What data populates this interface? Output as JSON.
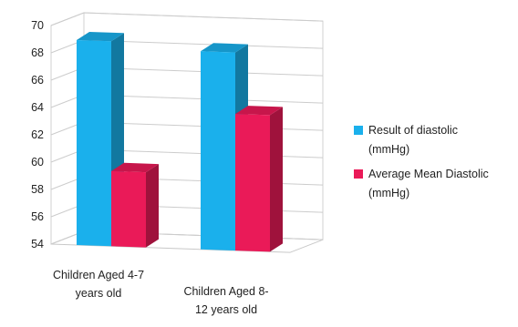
{
  "chart_data": {
    "type": "bar",
    "style": "3d-clustered-column",
    "categories": [
      "Children Aged 4-7 years old",
      "Children Aged 8-12 years old"
    ],
    "category_label_lines": [
      [
        "Children Aged 4-7",
        "years old"
      ],
      [
        "Children Aged 8-",
        "12 years old"
      ]
    ],
    "series": [
      {
        "name": "Result of diastolic (mmHg)",
        "values": [
          69.0,
          68.5
        ],
        "color": "#1ab0ec"
      },
      {
        "name": "Average Mean Diastolic (mmHg)",
        "values": [
          59.5,
          64.0
        ],
        "color": "#ea1a58"
      }
    ],
    "ylim": [
      54,
      70
    ],
    "yticks": [
      54,
      56,
      58,
      60,
      62,
      64,
      66,
      68,
      70
    ],
    "grid": true,
    "legend_position": "right",
    "title": "",
    "xlabel": "",
    "ylabel": ""
  },
  "legend": {
    "items": [
      {
        "line1": "Result of diastolic",
        "line2": "(mmHg)",
        "color": "#1ab0ec"
      },
      {
        "line1": "Average Mean Diastolic",
        "line2": "(mmHg)",
        "color": "#ea1a58"
      }
    ]
  }
}
